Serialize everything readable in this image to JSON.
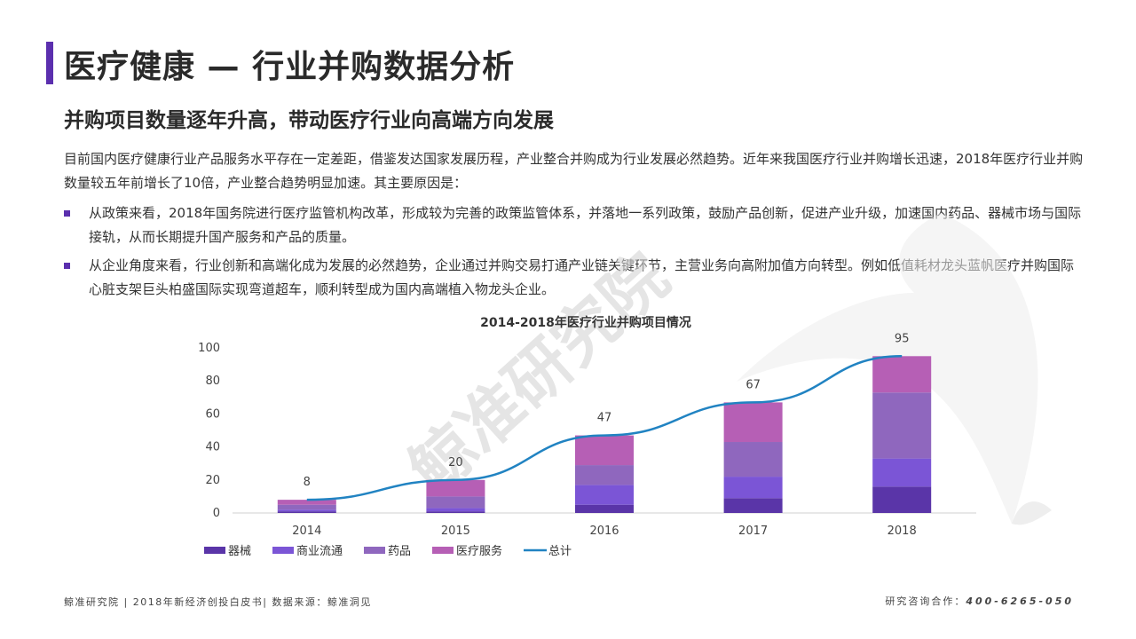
{
  "header": {
    "title": "医疗健康 — 行业并购数据分析",
    "subtitle": "并购项目数量逐年升高，带动医疗行业向高端方向发展"
  },
  "body": {
    "intro": "目前国内医疗健康行业产品服务水平存在一定差距，借鉴发达国家发展历程，产业整合并购成为行业发展必然趋势。近年来我国医疗行业并购增长迅速，2018年医疗行业并购数量较五年前增长了10倍，产业整合趋势明显加速。其主要原因是：",
    "bullets": [
      "从政策来看，2018年国务院进行医疗监管机构改革，形成较为完善的政策监管体系，并落地一系列政策，鼓励产品创新，促进产业升级，加速国内药品、器械市场与国际接轨，从而长期提升国产服务和产品的质量。",
      "从企业角度来看，行业创新和高端化成为发展的必然趋势，企业通过并购交易打通产业链关键环节，主营业务向高附加值方向转型。例如低值耗材龙头蓝帆医疗并购国际心脏支架巨头柏盛国际实现弯道超车，顺利转型成为国内高端植入物龙头企业。"
    ]
  },
  "watermark": {
    "text": "鲸准研究院"
  },
  "chart_data": {
    "type": "bar",
    "stacked": true,
    "title": "2014-2018年医疗行业并购项目情况",
    "categories": [
      "2014",
      "2015",
      "2016",
      "2017",
      "2018"
    ],
    "series": [
      {
        "name": "器械",
        "color": "#5a35a8",
        "values": [
          1,
          1,
          5,
          9,
          16
        ]
      },
      {
        "name": "商业流通",
        "color": "#7b55d6",
        "values": [
          1,
          2,
          12,
          13,
          17
        ]
      },
      {
        "name": "药品",
        "color": "#8f67be",
        "values": [
          3,
          7,
          12,
          21,
          40
        ]
      },
      {
        "name": "医疗服务",
        "color": "#b65fb5",
        "values": [
          3,
          10,
          18,
          24,
          22
        ]
      }
    ],
    "total": {
      "name": "总计",
      "color": "#2183c2",
      "values": [
        8,
        20,
        47,
        67,
        95
      ]
    },
    "ylim": [
      0,
      100
    ],
    "yticks": [
      0,
      20,
      40,
      60,
      80,
      100
    ],
    "grid": false,
    "legend": "bottom-left"
  },
  "footer": {
    "left": "鲸准研究院 | 2018年新经济创投白皮书| 数据来源：鲸准洞见",
    "contact_label": "研究咨询合作：",
    "phone": "400-6265-050"
  }
}
